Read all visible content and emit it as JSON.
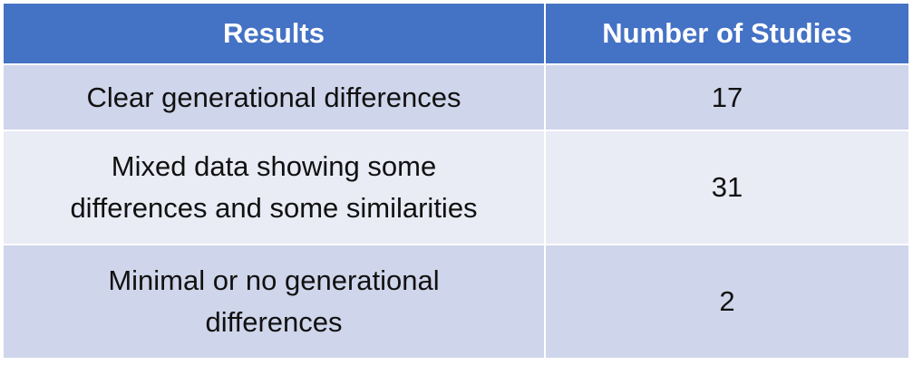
{
  "table": {
    "headers": [
      "Results",
      "Number of Studies"
    ],
    "rows": [
      {
        "result": "Clear generational differences",
        "count": "17"
      },
      {
        "result": "Mixed data showing some differences and some similarities",
        "count": "31"
      },
      {
        "result": "Minimal or no generational differences",
        "count": "2"
      }
    ],
    "colors": {
      "header_bg": "#4472c4",
      "header_text": "#ffffff",
      "row_odd_bg": "#cfd5ea",
      "row_even_bg": "#e9ebf5",
      "border": "#ffffff"
    }
  }
}
